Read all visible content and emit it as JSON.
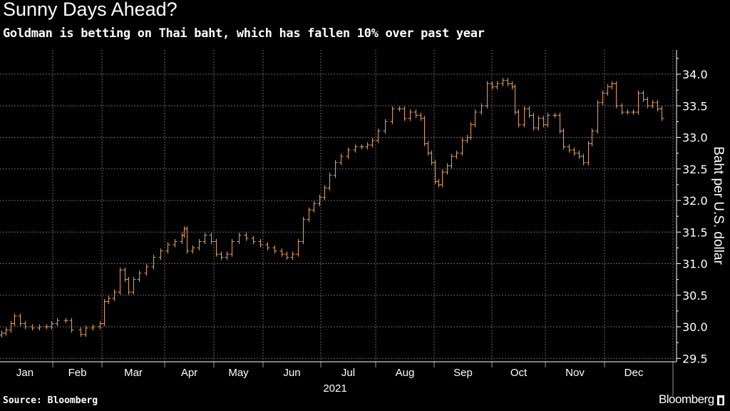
{
  "chart_data": {
    "type": "ohlc-bar",
    "title": "Sunny Days Ahead?",
    "subtitle": "Goldman is betting on Thai baht, which has fallen 10% over past year",
    "xlabel": "2021",
    "ylabel": "Baht per U.S. dollar",
    "source": "Source: Bloomberg",
    "brand": "Bloomberg",
    "ylim": [
      29.4,
      34.4
    ],
    "yticks": [
      "29.5",
      "30.0",
      "30.5",
      "31.0",
      "31.5",
      "32.0",
      "32.5",
      "33.0",
      "33.5",
      "34.0"
    ],
    "ytick_values": [
      29.5,
      30.0,
      30.5,
      31.0,
      31.5,
      32.0,
      32.5,
      33.0,
      33.5,
      34.0
    ],
    "xtick_labels": [
      "Jan",
      "Feb",
      "Mar",
      "Apr",
      "May",
      "Jun",
      "Jul",
      "Aug",
      "Sep",
      "Oct",
      "Nov",
      "Dec"
    ],
    "grid": true,
    "color": "#e8a35a",
    "x_unit": "month index (0 = start of Jan 2021)",
    "x": [
      0.05,
      0.13,
      0.22,
      0.29,
      0.39,
      0.49,
      0.62,
      0.75,
      0.88,
      0.97,
      1.09,
      1.26,
      1.38,
      1.57,
      1.67,
      1.81,
      1.96,
      2.03,
      2.1,
      2.19,
      2.28,
      2.36,
      2.42,
      2.5,
      2.59,
      2.7,
      2.82,
      2.93,
      3.06,
      3.2,
      3.35,
      3.39,
      3.45,
      3.57,
      3.7,
      3.81,
      3.94,
      4.04,
      4.14,
      4.26,
      4.36,
      4.51,
      4.65,
      4.8,
      4.94,
      5.07,
      5.2,
      5.32,
      5.41,
      5.51,
      5.6,
      5.69,
      5.79,
      5.88,
      5.98,
      6.06,
      6.16,
      6.26,
      6.36,
      6.49,
      6.62,
      6.74,
      6.84,
      6.94,
      7.04,
      7.16,
      7.28,
      7.4,
      7.49,
      7.59,
      7.68,
      7.77,
      7.83,
      7.89,
      7.95,
      8.01,
      8.07,
      8.14,
      8.22,
      8.3,
      8.38,
      8.48,
      8.57,
      8.63,
      8.7,
      8.81,
      8.91,
      9.0,
      9.09,
      9.2,
      9.29,
      9.37,
      9.43,
      9.49,
      9.6,
      9.69,
      9.77,
      9.87,
      9.96,
      10.04,
      10.16,
      10.24,
      10.3,
      10.4,
      10.48,
      10.57,
      10.64,
      10.72,
      10.78,
      10.88,
      10.96,
      11.05,
      11.12,
      11.2,
      11.29,
      11.39,
      11.49,
      11.57,
      11.66,
      11.73,
      11.82,
      11.9,
      11.98
    ],
    "close": [
      29.9,
      29.95,
      30.05,
      30.17,
      30.05,
      30.0,
      29.98,
      30.0,
      30.0,
      30.05,
      30.1,
      30.1,
      29.95,
      29.88,
      29.98,
      30.0,
      30.05,
      30.4,
      30.45,
      30.55,
      30.9,
      30.75,
      30.55,
      30.75,
      30.85,
      30.95,
      31.1,
      31.2,
      31.3,
      31.35,
      31.45,
      31.55,
      31.2,
      31.25,
      31.35,
      31.45,
      31.35,
      31.15,
      31.1,
      31.15,
      31.35,
      31.45,
      31.4,
      31.35,
      31.3,
      31.25,
      31.2,
      31.15,
      31.1,
      31.15,
      31.35,
      31.7,
      31.85,
      31.95,
      32.05,
      32.2,
      32.4,
      32.6,
      32.7,
      32.8,
      32.85,
      32.85,
      32.88,
      32.95,
      33.1,
      33.25,
      33.45,
      33.45,
      33.3,
      33.4,
      33.35,
      33.3,
      32.9,
      32.75,
      32.6,
      32.3,
      32.25,
      32.45,
      32.55,
      32.7,
      32.75,
      32.95,
      33.0,
      33.2,
      33.4,
      33.5,
      33.85,
      33.8,
      33.85,
      33.9,
      33.85,
      33.8,
      33.4,
      33.2,
      33.45,
      33.35,
      33.15,
      33.3,
      33.2,
      33.35,
      33.35,
      33.1,
      32.85,
      32.8,
      32.75,
      32.7,
      32.6,
      32.9,
      33.1,
      33.55,
      33.7,
      33.8,
      33.85,
      33.5,
      33.4,
      33.4,
      33.4,
      33.7,
      33.6,
      33.5,
      33.55,
      33.45,
      33.3
    ]
  }
}
